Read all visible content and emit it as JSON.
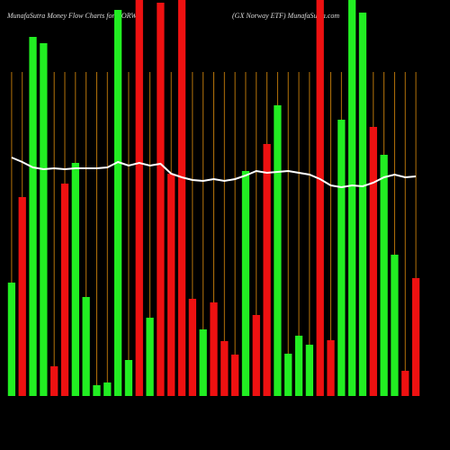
{
  "chart_data": {
    "type": "bar",
    "title": "MunafaSutra  Money Flow  Charts for NORW",
    "subtitle": "(GX  Norway ETF)  MunafaSutra.com",
    "categories": [
      null,
      null,
      null,
      null,
      null,
      null,
      null,
      null,
      null,
      null,
      null,
      null,
      null,
      null,
      null,
      null,
      null,
      null,
      null,
      null,
      null,
      null,
      null,
      null,
      null,
      null,
      null,
      null,
      null,
      null,
      null,
      null,
      null,
      null,
      null,
      null,
      null,
      null,
      null
    ],
    "values": [
      126,
      221,
      399,
      392,
      33,
      236,
      259,
      110,
      12,
      15,
      429,
      40,
      440,
      87,
      437,
      247,
      440,
      108,
      74,
      104,
      61,
      46,
      250,
      90,
      280,
      323,
      47,
      67,
      57,
      440,
      62,
      307,
      440,
      426,
      299,
      268,
      157,
      28,
      131
    ],
    "colors": [
      "#22ee22",
      "#ee1111",
      "#22ee22",
      "#22ee22",
      "#ee1111",
      "#ee1111",
      "#22ee22",
      "#22ee22",
      "#22ee22",
      "#22ee22",
      "#22ee22",
      "#22ee22",
      "#ee1111",
      "#22ee22",
      "#ee1111",
      "#ee1111",
      "#ee1111",
      "#ee1111",
      "#22ee22",
      "#ee1111",
      "#ee1111",
      "#ee1111",
      "#22ee22",
      "#ee1111",
      "#ee1111",
      "#22ee22",
      "#22ee22",
      "#22ee22",
      "#22ee22",
      "#ee1111",
      "#ee1111",
      "#22ee22",
      "#22ee22",
      "#22ee22",
      "#ee1111",
      "#22ee22",
      "#22ee22",
      "#ee1111",
      "#ee1111"
    ],
    "line": {
      "color": "#ffffff",
      "values": [
        265,
        260,
        254,
        252,
        253,
        252,
        253,
        253,
        253,
        254,
        260,
        256,
        259,
        256,
        258,
        247,
        243,
        240,
        239,
        241,
        239,
        241,
        245,
        250,
        248,
        249,
        250,
        248,
        246,
        241,
        234,
        232,
        234,
        233,
        237,
        243,
        246,
        243,
        244
      ]
    },
    "ylim": [
      0,
      440
    ],
    "grid_color": "#b5730a"
  }
}
